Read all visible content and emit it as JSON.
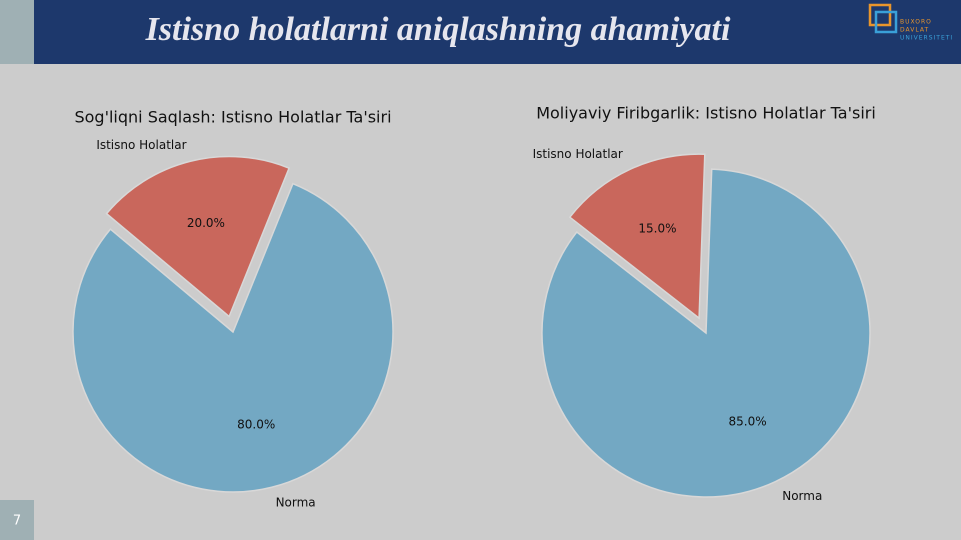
{
  "slide": {
    "title": "Istisno holatlarni aniqlashning ahamiyati",
    "page_number": "7"
  },
  "logo": {
    "lines": [
      "BUXORO",
      "DAVLAT",
      "UNIVERSITETI"
    ]
  },
  "chart_data": [
    {
      "type": "pie",
      "title": "Sog'liqni Saqlash: Istisno Holatlar Ta'siri",
      "categories": [
        "Istisno Holatlar",
        "Norma"
      ],
      "values": [
        20,
        80
      ],
      "value_labels": [
        "20.0%",
        "80.0%"
      ],
      "colors": [
        "#c9675c",
        "#73a8c3"
      ],
      "explode": [
        0.1,
        0
      ],
      "startangle": 68
    },
    {
      "type": "pie",
      "title": "Moliyaviy Firibgarlik: Istisno Holatlar Ta'siri",
      "categories": [
        "Istisno Holatlar",
        "Norma"
      ],
      "values": [
        15,
        85
      ],
      "value_labels": [
        "15.0%",
        "85.0%"
      ],
      "colors": [
        "#c9675c",
        "#73a8c3"
      ],
      "explode": [
        0.1,
        0
      ],
      "startangle": 88
    }
  ]
}
